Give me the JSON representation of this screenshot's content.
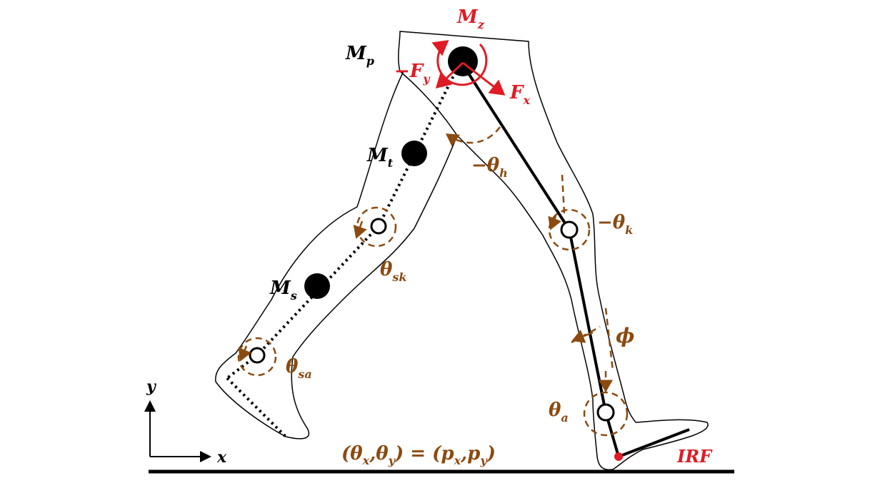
{
  "labels": {
    "pelvis_mass": {
      "base": "M",
      "sub": "p"
    },
    "thigh_mass": {
      "base": "M",
      "sub": "t"
    },
    "shank_mass": {
      "base": "M",
      "sub": "s"
    },
    "hip_moment": {
      "base": "M",
      "sub": "z"
    },
    "force_y": {
      "base": "−F",
      "sub": "y"
    },
    "force_x": {
      "base": "F",
      "sub": "x"
    },
    "hip_angle": {
      "base": "−θ",
      "sub": "h"
    },
    "knee_angle": {
      "base": "−θ",
      "sub": "k"
    },
    "swing_knee_angle": {
      "base": "θ",
      "sub": "sk"
    },
    "swing_ankle_angle": {
      "base": "θ",
      "sub": "sa"
    },
    "ankle_angle": {
      "base": "θ",
      "sub": "a"
    },
    "foot_angle": "ϕ",
    "contact_point": "IRF",
    "axis_x": "x",
    "axis_y": "y",
    "equation": {
      "open": "(θ",
      "sx": "x",
      "comma1": ",θ",
      "sy": "y",
      "mid": ") = (p",
      "spx": "x",
      "comma2": ",p",
      "spy": "y",
      "close": ")"
    }
  },
  "colors": {
    "ink": "#000000",
    "force_red": "#e01b24",
    "angle_brown": "#8b4a10"
  }
}
